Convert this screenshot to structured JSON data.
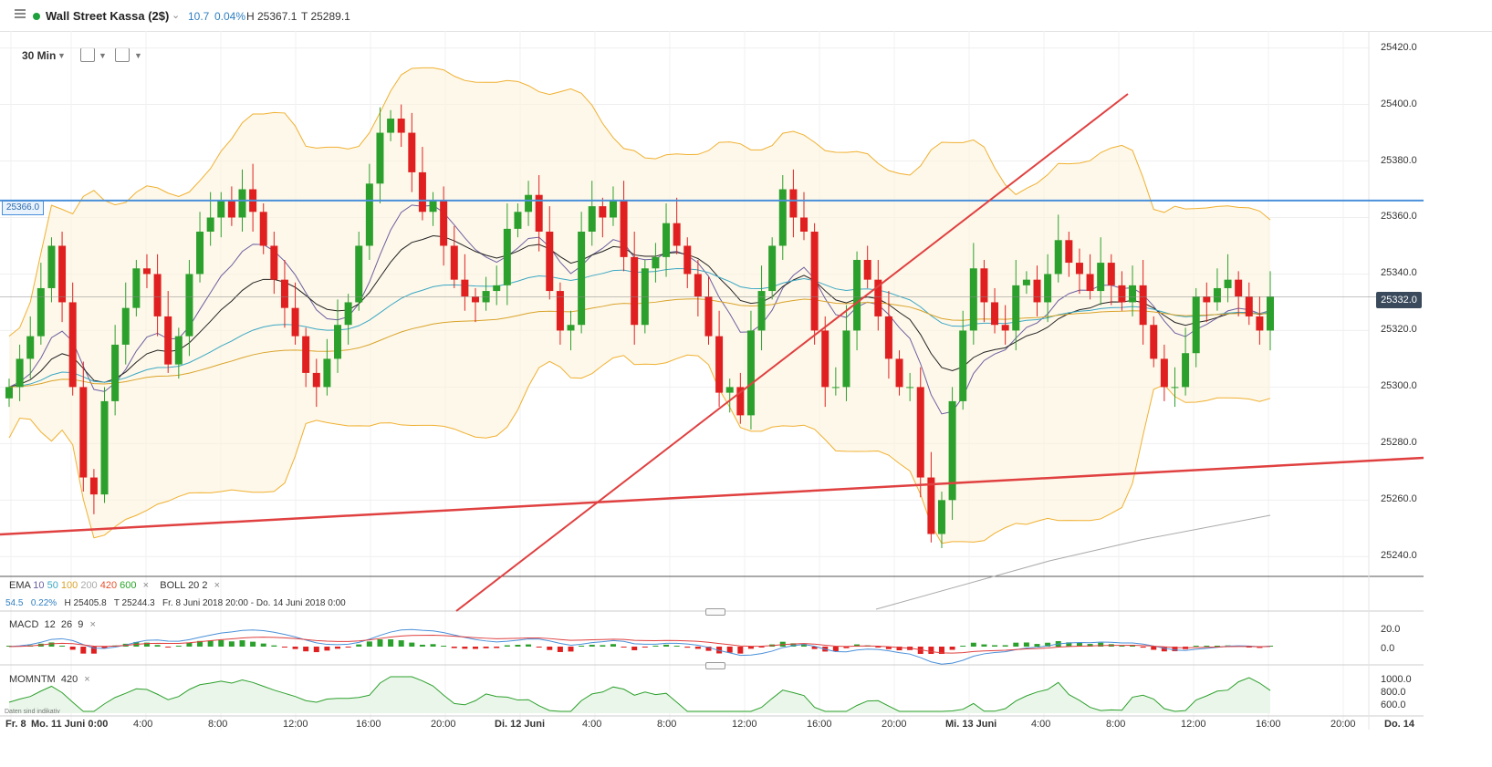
{
  "header": {
    "instrument": "Wall Street Kassa (2$)",
    "change": "10.7",
    "change_pct": "0.04%",
    "high": "H 25367.1",
    "low": "T 25289.1"
  },
  "toolbar": {
    "timeframe": "30 Min",
    "chart_type_icon": "candlestick-icon",
    "indicators_icon": "indicators-icon"
  },
  "price_axis": [
    "25420.0",
    "25400.0",
    "25380.0",
    "25360.0",
    "25340.0",
    "25320.0",
    "25300.0",
    "25280.0",
    "25260.0",
    "25240.0"
  ],
  "current_price": "25332.0",
  "level_label": "25366.0",
  "overlay_legend": {
    "ema_label": "EMA",
    "ema_periods": [
      "10",
      "50",
      "100",
      "200",
      "420",
      "600"
    ],
    "ema_colors": [
      "#6c5fa0",
      "#3aa7c4",
      "#d9a32b",
      "#aaaaaa",
      "#e8502e",
      "#2aa52a"
    ],
    "boll_label": "BOLL",
    "boll_params": [
      "20",
      "2"
    ],
    "stats_change": "54.5",
    "stats_pct": "0.22%",
    "stats_high": "H 25405.8",
    "stats_low": "T 25244.3",
    "stats_range": "Fr. 8 Juni 2018 20:00 - Do. 14 Juni 2018 0:00"
  },
  "macd": {
    "label": "MACD",
    "params": [
      "12",
      "26",
      "9"
    ],
    "axis": [
      "20.0",
      "0.0"
    ]
  },
  "momentum": {
    "label": "MOMNTM",
    "param": "420",
    "axis": [
      "1000.0",
      "800.0",
      "600.0"
    ],
    "disclaimer": "Daten sind indikativ"
  },
  "time_axis": [
    {
      "label": "Fr. 8",
      "bold": true
    },
    {
      "label": "Mo. 11 Juni 0:00",
      "bold": true
    },
    {
      "label": "4:00",
      "bold": false
    },
    {
      "label": "8:00",
      "bold": false
    },
    {
      "label": "12:00",
      "bold": false
    },
    {
      "label": "16:00",
      "bold": false
    },
    {
      "label": "20:00",
      "bold": false
    },
    {
      "label": "Di. 12 Juni",
      "bold": true
    },
    {
      "label": "4:00",
      "bold": false
    },
    {
      "label": "8:00",
      "bold": false
    },
    {
      "label": "12:00",
      "bold": false
    },
    {
      "label": "16:00",
      "bold": false
    },
    {
      "label": "20:00",
      "bold": false
    },
    {
      "label": "Mi. 13 Juni",
      "bold": true
    },
    {
      "label": "4:00",
      "bold": false
    },
    {
      "label": "8:00",
      "bold": false
    },
    {
      "label": "12:00",
      "bold": false
    },
    {
      "label": "16:00",
      "bold": false
    },
    {
      "label": "20:00",
      "bold": false
    },
    {
      "label": "Do. 14",
      "bold": true
    }
  ],
  "colors": {
    "up": "#2ca02c",
    "down": "#e02020",
    "trendline": "#e04040",
    "level": "#4a90d9",
    "boll": "#f0b030"
  },
  "chart_data": {
    "type": "candlestick",
    "ylim": [
      25233,
      25426
    ],
    "closes": [
      25300,
      25310,
      25318,
      25335,
      25350,
      25330,
      25300,
      25268,
      25262,
      25295,
      25315,
      25328,
      25342,
      25340,
      25325,
      25308,
      25318,
      25340,
      25355,
      25360,
      25366,
      25360,
      25370,
      25362,
      25350,
      25338,
      25328,
      25318,
      25305,
      25300,
      25310,
      25322,
      25330,
      25350,
      25372,
      25390,
      25395,
      25390,
      25376,
      25362,
      25366,
      25350,
      25338,
      25332,
      25330,
      25334,
      25336,
      25356,
      25362,
      25368,
      25355,
      25334,
      25320,
      25322,
      25355,
      25364,
      25360,
      25366,
      25346,
      25322,
      25342,
      25346,
      25358,
      25350,
      25340,
      25332,
      25318,
      25298,
      25300,
      25290,
      25320,
      25334,
      25350,
      25370,
      25360,
      25355,
      25320,
      25300,
      25300,
      25320,
      25345,
      25338,
      25325,
      25310,
      25300,
      25300,
      25268,
      25248,
      25260,
      25295,
      25320,
      25342,
      25330,
      25322,
      25320,
      25336,
      25338,
      25330,
      25340,
      25352,
      25344,
      25340,
      25334,
      25344,
      25336,
      25330,
      25336,
      25322,
      25310,
      25300,
      25300,
      25312,
      25332,
      25330,
      25335,
      25338,
      25332,
      25325,
      25320,
      25332
    ]
  }
}
